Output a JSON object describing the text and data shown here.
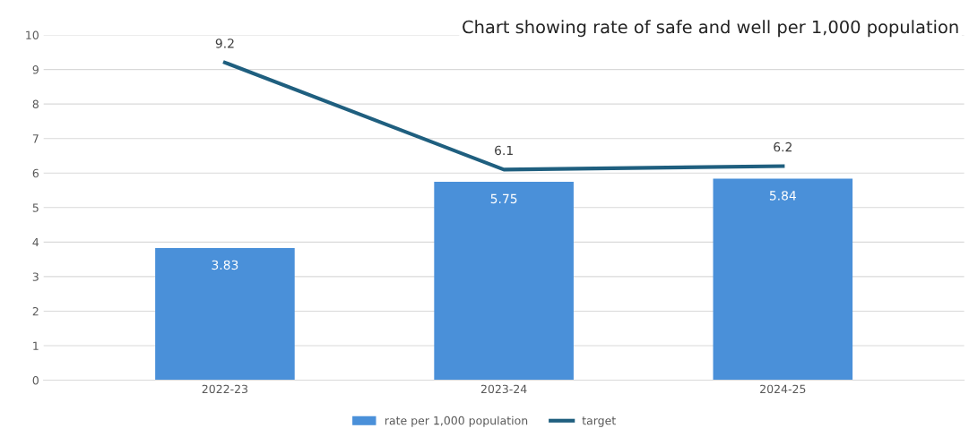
{
  "chart_data": {
    "type": "bar",
    "title": "Chart showing rate of safe and well per 1,000 population",
    "categories": [
      "2022-23",
      "2023-24",
      "2024-25"
    ],
    "series": [
      {
        "name": "rate per 1,000 population",
        "color": "#4a90d9",
        "values": [
          3.83,
          5.75,
          5.84
        ]
      },
      {
        "name": "target",
        "type": "line",
        "color": "#1f5f7f",
        "values": [
          9.2,
          6.1,
          6.2
        ]
      }
    ],
    "ylim": [
      0,
      10
    ],
    "yticks": [
      0,
      1,
      2,
      3,
      4,
      5,
      6,
      7,
      8,
      9,
      10
    ],
    "grid": "y",
    "legend": "bottom",
    "data_labels": true,
    "marker": "none"
  }
}
